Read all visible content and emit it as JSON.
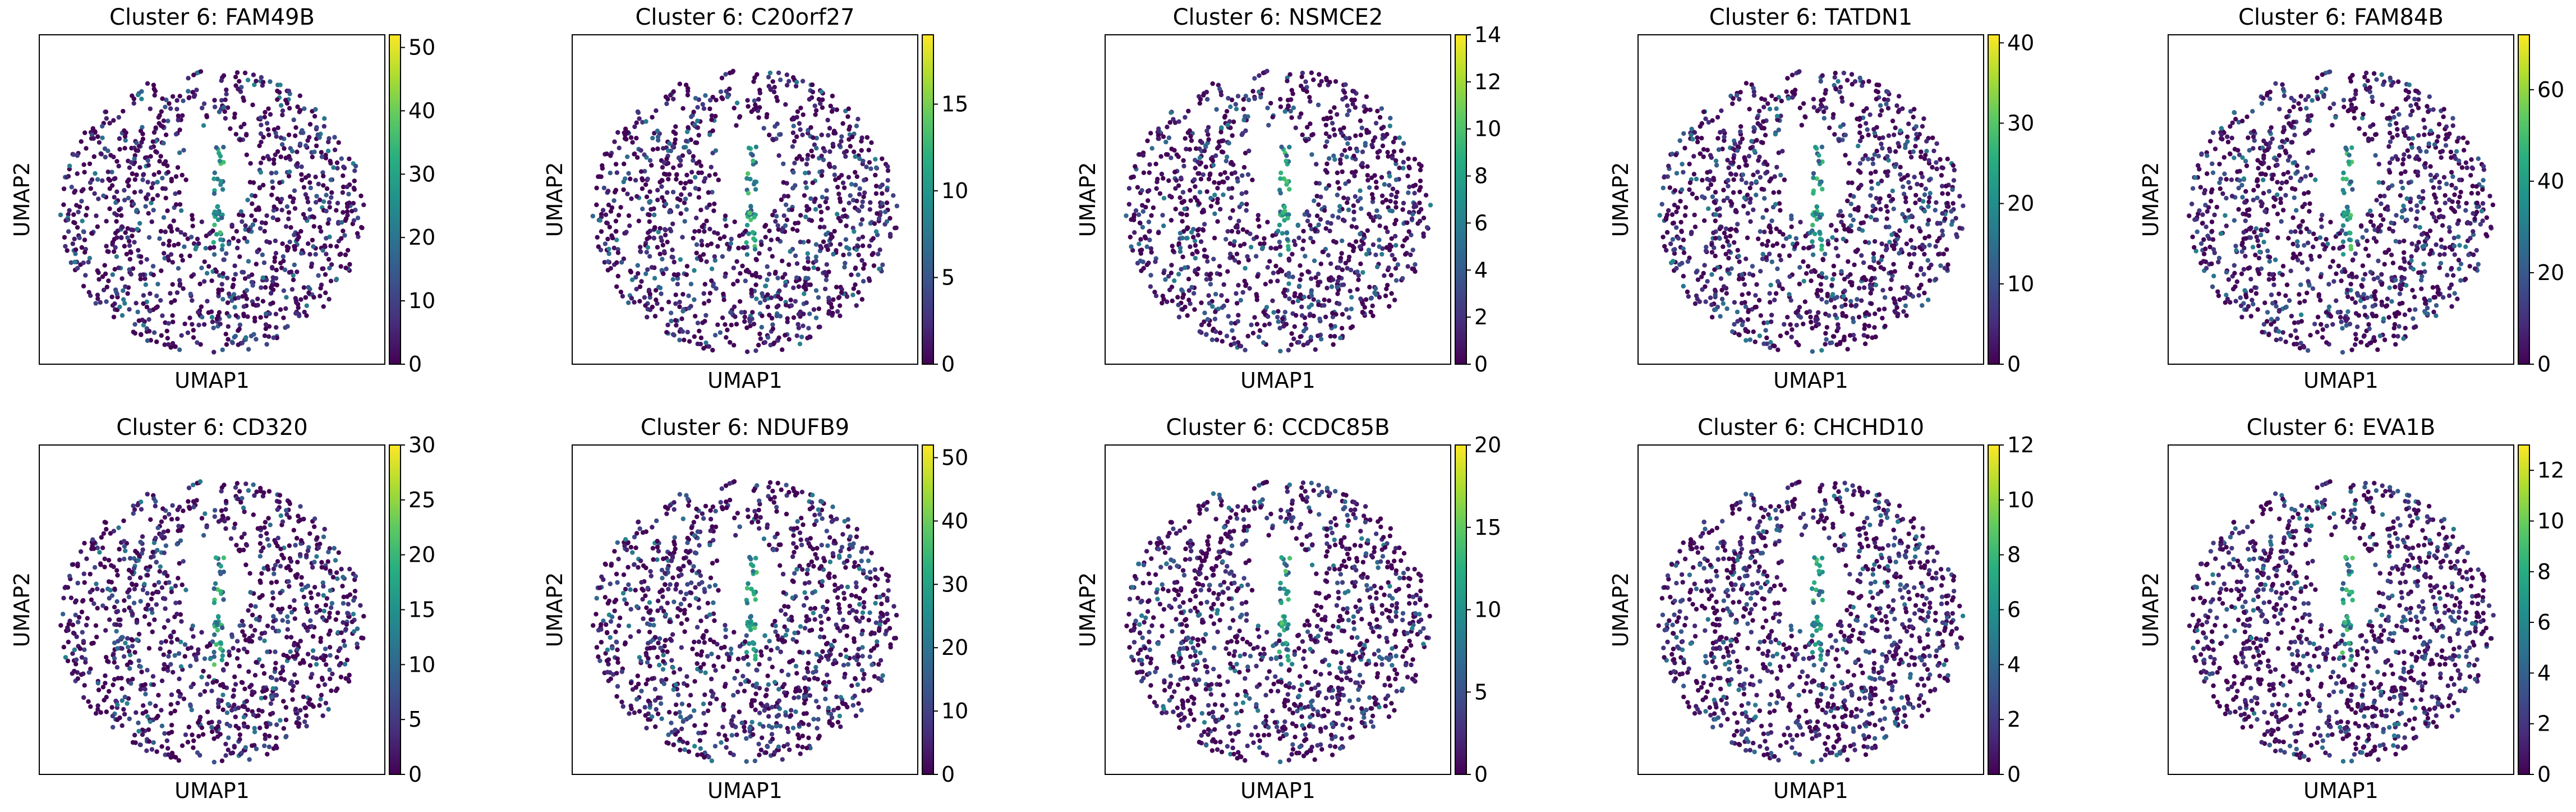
{
  "chart_data": [
    {
      "type": "scatter",
      "title": "Cluster 6: FAM49B",
      "xlabel": "UMAP1",
      "ylabel": "UMAP2",
      "colorbar": {
        "range": [
          0,
          52
        ],
        "ticks": [
          0,
          10,
          20,
          30,
          40,
          50
        ]
      },
      "gene": "FAM49B",
      "points": [],
      "grid": false
    },
    {
      "type": "scatter",
      "title": "Cluster 6: C20orf27",
      "xlabel": "UMAP1",
      "ylabel": "UMAP2",
      "colorbar": {
        "range": [
          0,
          19
        ],
        "ticks": [
          0,
          5,
          10,
          15
        ]
      },
      "gene": "C20orf27",
      "points": [],
      "grid": false
    },
    {
      "type": "scatter",
      "title": "Cluster 6: NSMCE2",
      "xlabel": "UMAP1",
      "ylabel": "UMAP2",
      "colorbar": {
        "range": [
          0,
          14
        ],
        "ticks": [
          0,
          2,
          4,
          6,
          8,
          10,
          12,
          14
        ]
      },
      "gene": "NSMCE2",
      "points": [],
      "grid": false
    },
    {
      "type": "scatter",
      "title": "Cluster 6: TATDN1",
      "xlabel": "UMAP1",
      "ylabel": "UMAP2",
      "colorbar": {
        "range": [
          0,
          41
        ],
        "ticks": [
          0,
          10,
          20,
          30,
          40
        ]
      },
      "gene": "TATDN1",
      "points": [],
      "grid": false
    },
    {
      "type": "scatter",
      "title": "Cluster 6: FAM84B",
      "xlabel": "UMAP1",
      "ylabel": "UMAP2",
      "colorbar": {
        "range": [
          0,
          72
        ],
        "ticks": [
          0,
          20,
          40,
          60
        ]
      },
      "gene": "FAM84B",
      "points": [],
      "grid": false
    },
    {
      "type": "scatter",
      "title": "Cluster 6: CD320",
      "xlabel": "UMAP1",
      "ylabel": "UMAP2",
      "colorbar": {
        "range": [
          0,
          30
        ],
        "ticks": [
          0,
          5,
          10,
          15,
          20,
          25,
          30
        ]
      },
      "gene": "CD320",
      "points": [],
      "grid": false
    },
    {
      "type": "scatter",
      "title": "Cluster 6: NDUFB9",
      "xlabel": "UMAP1",
      "ylabel": "UMAP2",
      "colorbar": {
        "range": [
          0,
          52
        ],
        "ticks": [
          0,
          10,
          20,
          30,
          40,
          50
        ]
      },
      "gene": "NDUFB9",
      "points": [],
      "grid": false
    },
    {
      "type": "scatter",
      "title": "Cluster 6: CCDC85B",
      "xlabel": "UMAP1",
      "ylabel": "UMAP2",
      "colorbar": {
        "range": [
          0,
          20
        ],
        "ticks": [
          0,
          5,
          10,
          15,
          20
        ]
      },
      "gene": "CCDC85B",
      "points": [],
      "grid": false
    },
    {
      "type": "scatter",
      "title": "Cluster 6: CHCHD10",
      "xlabel": "UMAP1",
      "ylabel": "UMAP2",
      "colorbar": {
        "range": [
          0,
          12
        ],
        "ticks": [
          0,
          2,
          4,
          6,
          8,
          10,
          12
        ]
      },
      "gene": "CHCHD10",
      "points": [],
      "grid": false
    },
    {
      "type": "scatter",
      "title": "Cluster 6: EVA1B",
      "xlabel": "UMAP1",
      "ylabel": "UMAP2",
      "colorbar": {
        "range": [
          0,
          13
        ],
        "ticks": [
          0,
          2,
          4,
          6,
          8,
          10,
          12
        ]
      },
      "gene": "EVA1B",
      "points": [],
      "grid": false
    }
  ]
}
